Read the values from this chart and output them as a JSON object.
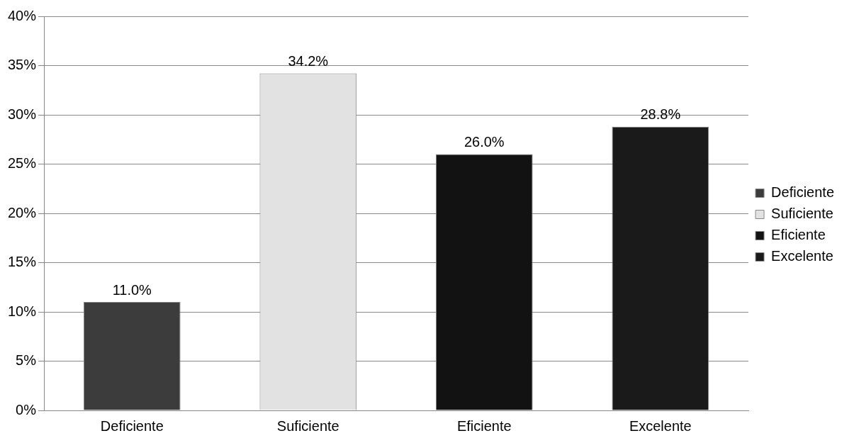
{
  "chart_data": {
    "type": "bar",
    "categories": [
      "Deficiente",
      "Suficiente",
      "Eficiente",
      "Excelente"
    ],
    "series": [
      {
        "name": "Deficiente",
        "color": "#3c3c3c",
        "values": [
          11.0,
          null,
          null,
          null
        ],
        "value_labels": [
          "11.0%",
          null,
          null,
          null
        ]
      },
      {
        "name": "Suficiente",
        "color": "#e2e2e2",
        "values": [
          null,
          34.2,
          null,
          null
        ],
        "value_labels": [
          null,
          "34.2%",
          null,
          null
        ]
      },
      {
        "name": "Eficiente",
        "color": "#121212",
        "values": [
          null,
          null,
          26.0,
          null
        ],
        "value_labels": [
          null,
          null,
          "26.0%",
          null
        ]
      },
      {
        "name": "Excelente",
        "color": "#1a1a1a",
        "values": [
          null,
          null,
          null,
          28.8
        ],
        "value_labels": [
          null,
          null,
          null,
          "28.8%"
        ]
      }
    ],
    "ylim": [
      0,
      40
    ],
    "yticks": [
      {
        "value": 0,
        "label": "0%"
      },
      {
        "value": 5,
        "label": "5%"
      },
      {
        "value": 10,
        "label": "10%"
      },
      {
        "value": 15,
        "label": "15%"
      },
      {
        "value": 20,
        "label": "20%"
      },
      {
        "value": 25,
        "label": "25%"
      },
      {
        "value": 30,
        "label": "30%"
      },
      {
        "value": 35,
        "label": "35%"
      },
      {
        "value": 40,
        "label": "40%"
      }
    ],
    "grid": "y",
    "legend": "right"
  }
}
